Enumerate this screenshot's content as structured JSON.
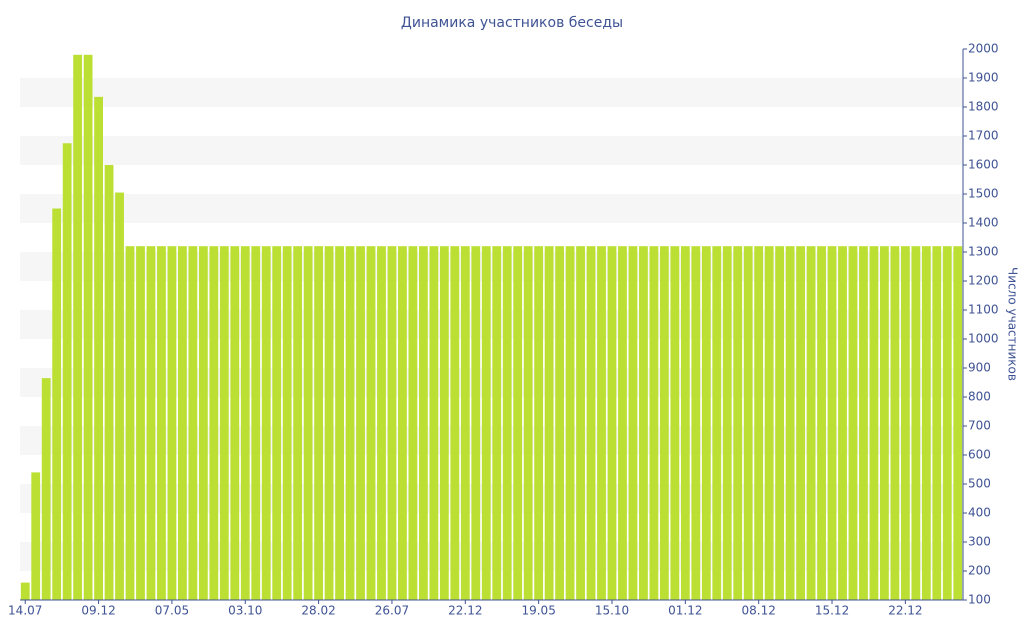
{
  "chart_data": {
    "type": "bar",
    "title": "Динамика участников беседы",
    "y_label": "Число участников",
    "color": "#bbdf32",
    "grid": true,
    "y_axis_side": "right",
    "categories": [
      "14.07",
      null,
      null,
      null,
      null,
      null,
      null,
      "09.12",
      null,
      null,
      null,
      null,
      null,
      null,
      "07.05",
      null,
      null,
      null,
      null,
      null,
      null,
      "03.10",
      null,
      null,
      null,
      null,
      null,
      null,
      "28.02",
      null,
      null,
      null,
      null,
      null,
      null,
      "26.07",
      null,
      null,
      null,
      null,
      null,
      null,
      "22.12",
      null,
      null,
      null,
      null,
      null,
      null,
      "19.05",
      null,
      null,
      null,
      null,
      null,
      null,
      "15.10",
      null,
      null,
      null,
      null,
      null,
      null,
      "01.12",
      null,
      null,
      null,
      null,
      null,
      null,
      "08.12",
      null,
      null,
      null,
      null,
      null,
      null,
      "15.12",
      null,
      null,
      null,
      null,
      null,
      null,
      "22.12",
      null,
      null,
      null,
      null,
      null
    ],
    "values": [
      160,
      540,
      865,
      1450,
      1675,
      1980,
      1980,
      1835,
      1600,
      1505,
      1320,
      1320,
      1320,
      1320,
      1320,
      1320,
      1320,
      1320,
      1320,
      1320,
      1320,
      1320,
      1320,
      1320,
      1320,
      1320,
      1320,
      1320,
      1320,
      1320,
      1320,
      1320,
      1320,
      1320,
      1320,
      1320,
      1320,
      1320,
      1320,
      1320,
      1320,
      1320,
      1320,
      1320,
      1320,
      1320,
      1320,
      1320,
      1320,
      1320,
      1320,
      1320,
      1320,
      1320,
      1320,
      1320,
      1320,
      1320,
      1320,
      1320,
      1320,
      1320,
      1320,
      1320,
      1320,
      1320,
      1320,
      1320,
      1320,
      1320,
      1320,
      1320,
      1320,
      1320,
      1320,
      1320,
      1320,
      1320,
      1320,
      1320,
      1320,
      1320,
      1320,
      1320,
      1320,
      1320,
      1320,
      1320,
      1320,
      1320
    ],
    "ylim": [
      100,
      2000
    ],
    "yticks": [
      100,
      200,
      300,
      400,
      500,
      600,
      700,
      800,
      900,
      1000,
      1100,
      1200,
      1300,
      1400,
      1500,
      1600,
      1700,
      1800,
      1900,
      2000
    ]
  }
}
